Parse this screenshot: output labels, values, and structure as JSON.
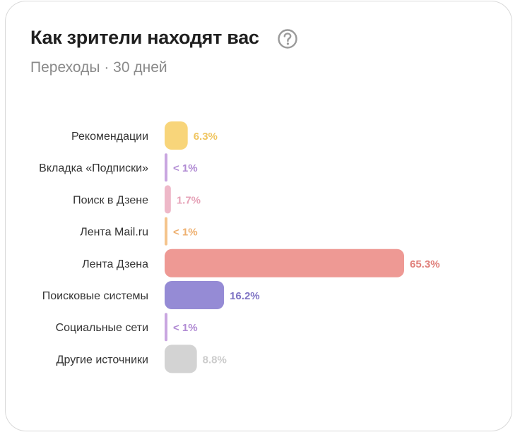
{
  "header": {
    "title": "Как зрители находят вас",
    "subtitle": "Переходы · 30 дней",
    "help_icon": "question-circle-icon"
  },
  "chart_data": {
    "type": "bar",
    "orientation": "horizontal",
    "categories": [
      "Рекомендации",
      "Вкладка «Подписки»",
      "Поиск в Дзене",
      "Лента Mail.ru",
      "Лента Дзена",
      "Поисковые системы",
      "Социальные сети",
      "Другие источники"
    ],
    "values": [
      6.3,
      0.5,
      1.7,
      0.5,
      65.3,
      16.2,
      0.5,
      8.8
    ],
    "value_labels": [
      "6.3%",
      "< 1%",
      "1.7%",
      "< 1%",
      "65.3%",
      "16.2%",
      "< 1%",
      "8.8%"
    ],
    "colors": [
      "#f8d57a",
      "#c9a6e0",
      "#eeb8c8",
      "#f4c48c",
      "#ee9994",
      "#958bd5",
      "#c9a6e0",
      "#d3d3d3"
    ],
    "label_colors": [
      "#f0c560",
      "#b08ad3",
      "#e6a3b8",
      "#eeb070",
      "#e0807b",
      "#7f74c4",
      "#b08ad3",
      "#cccccc"
    ],
    "xlim": [
      0,
      65.3
    ],
    "grid": false,
    "legend": "none"
  }
}
